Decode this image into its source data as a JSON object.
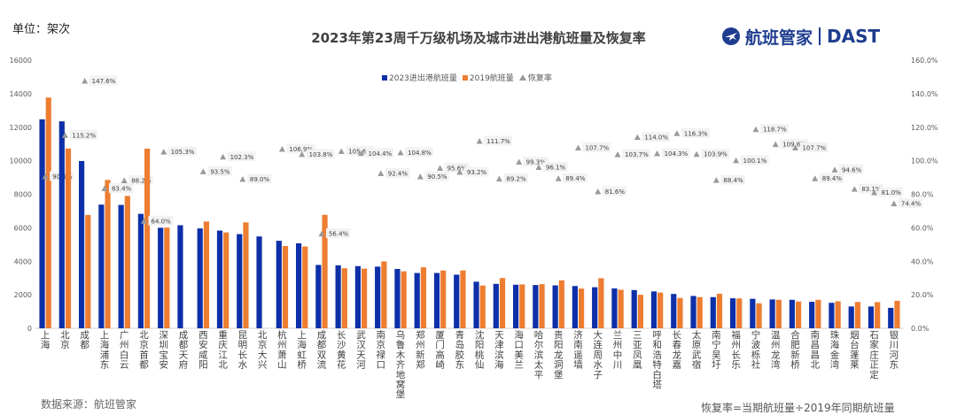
{
  "unit_label": "单位：架次",
  "source": "数据来源：航班管家",
  "note": "恢复率=当期航班量÷2019年同期航班量",
  "logo": {
    "text": "航班管家",
    "brand": "DAST"
  },
  "colors": {
    "series2023": "#0d2fa8",
    "series2019": "#ed7d31",
    "rate": "#9a9a9a",
    "label_bg": "#f2f2f2"
  },
  "chart_data": {
    "type": "bar",
    "title": "2023年第23周千万级机场及城市进出港航班量及恢复率",
    "categories": [
      "上海",
      "北京",
      "成都",
      "上海浦东",
      "广州白云",
      "北京首都",
      "深圳宝安",
      "成都天府",
      "西安咸阳",
      "重庆江北",
      "昆明长水",
      "北京大兴",
      "杭州萧山",
      "上海虹桥",
      "成都双流",
      "长沙黄花",
      "武汉天河",
      "南京禄口",
      "乌鲁木齐地窝堡",
      "郑州新郑",
      "厦门高崎",
      "青岛胶东",
      "沈阳桃仙",
      "天津滨海",
      "海口美兰",
      "哈尔滨太平",
      "贵阳龙洞堡",
      "济南遥墙",
      "大连周水子",
      "兰州中川",
      "三亚凤凰",
      "呼和浩特白塔",
      "长春龙嘉",
      "太原武宿",
      "南宁吴圩",
      "福州长乐",
      "宁波栎社",
      "温州龙湾",
      "合肥新桥",
      "南昌昌北",
      "珠海金湾",
      "烟台蓬莱",
      "石家庄正定",
      "银川河东"
    ],
    "series": [
      {
        "name": "2023进出港航班量",
        "axis": "left",
        "values": [
          12470,
          12350,
          9980,
          7380,
          7360,
          6830,
          6000,
          6150,
          5960,
          5830,
          5620,
          5480,
          5220,
          5070,
          3780,
          3760,
          3710,
          3680,
          3540,
          3300,
          3300,
          3200,
          2780,
          2650,
          2600,
          2580,
          2560,
          2520,
          2450,
          2380,
          2280,
          2200,
          2050,
          1930,
          1860,
          1790,
          1760,
          1720,
          1700,
          1580,
          1520,
          1300,
          1300,
          1220
        ]
      },
      {
        "name": "2019航班量",
        "axis": "left",
        "values": [
          13770,
          10730,
          6760,
          8850,
          7900,
          10720,
          6010,
          0,
          6370,
          5720,
          6320,
          0,
          4910,
          4880,
          6770,
          3580,
          3560,
          3990,
          3400,
          3640,
          3450,
          3450,
          2550,
          3000,
          2620,
          2630,
          2860,
          2370,
          2990,
          2300,
          2000,
          2130,
          1810,
          1860,
          2060,
          1780,
          1490,
          1700,
          1600,
          1700,
          1610,
          1570,
          1560,
          1640
        ]
      },
      {
        "name": "恢复率",
        "axis": "right",
        "type": "scatter",
        "values": [
          90.6,
          115.2,
          147.6,
          83.4,
          88.2,
          64.0,
          105.3,
          null,
          93.5,
          102.3,
          89.0,
          null,
          106.9,
          103.8,
          56.4,
          105.6,
          104.4,
          92.4,
          104.8,
          90.5,
          95.6,
          93.2,
          111.7,
          89.2,
          99.3,
          96.1,
          89.4,
          107.7,
          81.6,
          103.7,
          114.0,
          104.3,
          116.3,
          103.9,
          88.4,
          100.1,
          118.7,
          109.8,
          107.7,
          89.4,
          94.6,
          83.1,
          81.0,
          74.4
        ]
      }
    ],
    "rate_labels": [
      "90.6%",
      "115.2%",
      "147.6%",
      "83.4%",
      "88.2%",
      "64.0%",
      "105.3%",
      "",
      "93.5%",
      "102.3%",
      "89.0%",
      "",
      "106.9%",
      "103.8%",
      "56.4%",
      "105.6%",
      "104.4%",
      "92.4%",
      "104.8%",
      "90.5%",
      "95.6%",
      "93.2%",
      "111.7%",
      "89.2%",
      "99.3%",
      "96.1%",
      "89.4%",
      "107.7%",
      "81.6%",
      "103.7%",
      "114.0%",
      "104.3%",
      "116.3%",
      "103.9%",
      "88.4%",
      "100.1%",
      "118.7%",
      "109.8%",
      "107.7%",
      "89.4%",
      "94.6%",
      "83.1%",
      "81.0%",
      "74.4%"
    ],
    "left_axis": {
      "min": 0,
      "max": 16000,
      "ticks": [
        "0",
        "2000",
        "4000",
        "6000",
        "8000",
        "10000",
        "12000",
        "14000",
        "16000"
      ]
    },
    "right_axis": {
      "min": 0,
      "max": 160,
      "ticks": [
        "0.0%",
        "20.0%",
        "40.0%",
        "60.0%",
        "80.0%",
        "100.0%",
        "120.0%",
        "140.0%",
        "160.0%"
      ]
    },
    "legend": [
      "2023进出港航班量",
      "2019航班量",
      "恢复率"
    ],
    "legend_position": "top-center",
    "grid": false
  }
}
